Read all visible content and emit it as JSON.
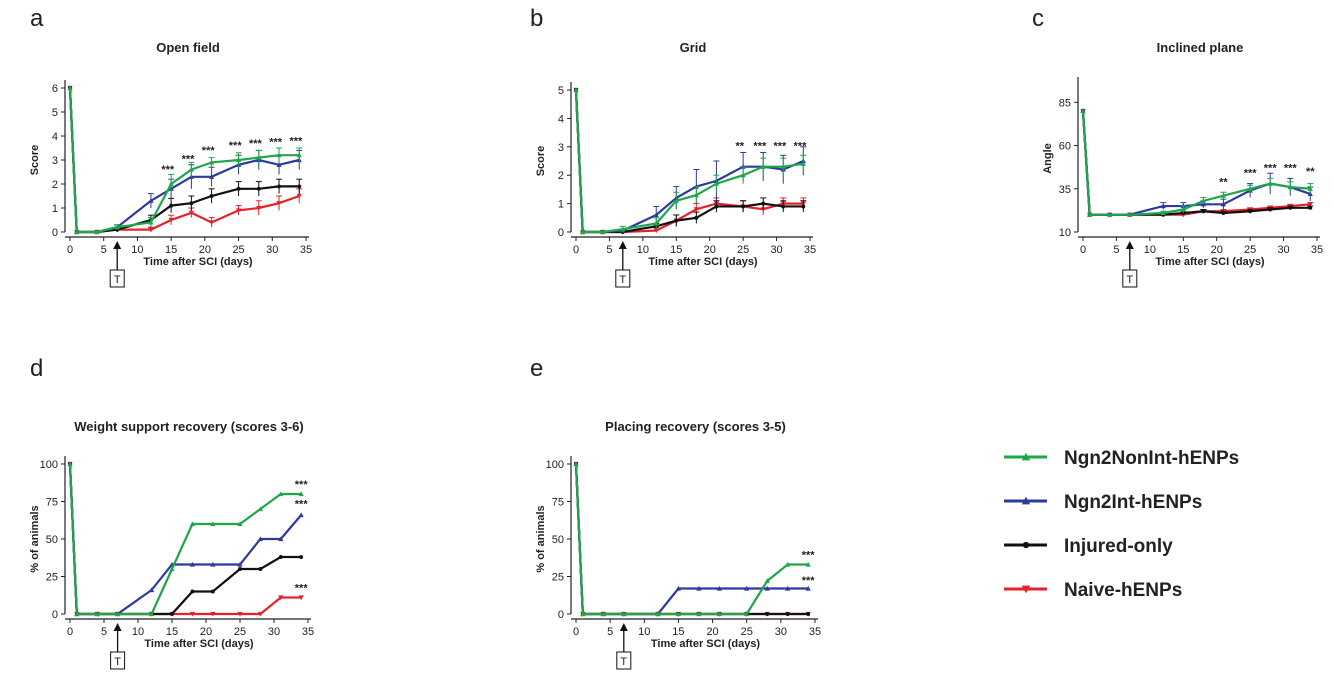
{
  "series_styles": [
    {
      "name": "Ngn2NonInt-hENPs",
      "color": "#1fa64a",
      "marker": "triangle-up"
    },
    {
      "name": "Ngn2Int-hENPs",
      "color": "#2b3a9c",
      "marker": "triangle-up"
    },
    {
      "name": "Injured-only",
      "color": "#111111",
      "marker": "circle"
    },
    {
      "name": "Naive-hENPs",
      "color": "#e8202a",
      "marker": "triangle-down"
    }
  ],
  "treatment_marker": {
    "label": "T",
    "day": 7
  },
  "chart_data": [
    {
      "id": "a",
      "panel_label": "a",
      "type": "line",
      "title": "Open field",
      "xlabel": "Time after SCI (days)",
      "ylabel": "Score",
      "xlim": [
        0,
        35
      ],
      "xticks": [
        0,
        5,
        10,
        15,
        20,
        25,
        30,
        35
      ],
      "ylim": [
        0,
        6
      ],
      "yticks": [
        0,
        1,
        2,
        3,
        4,
        5,
        6
      ],
      "annotations": [
        {
          "text": "***",
          "x": 14.5,
          "y": 2.45
        },
        {
          "text": "***",
          "x": 17.5,
          "y": 2.9
        },
        {
          "text": "***",
          "x": 20.5,
          "y": 3.25
        },
        {
          "text": "***",
          "x": 24.5,
          "y": 3.45
        },
        {
          "text": "***",
          "x": 27.5,
          "y": 3.55
        },
        {
          "text": "***",
          "x": 30.5,
          "y": 3.6
        },
        {
          "text": "***",
          "x": 33.5,
          "y": 3.65
        }
      ],
      "series": [
        {
          "name": "Ngn2NonInt-hENPs",
          "x": [
            0,
            1,
            4,
            7,
            12,
            15,
            18,
            21,
            25,
            28,
            31,
            34
          ],
          "y": [
            6,
            0,
            0,
            0.2,
            0.4,
            2.0,
            2.6,
            2.9,
            3.0,
            3.1,
            3.2,
            3.2
          ],
          "err": [
            0,
            0,
            0,
            0.1,
            0.2,
            0.4,
            0.3,
            0.2,
            0.3,
            0.3,
            0.3,
            0.3
          ]
        },
        {
          "name": "Ngn2Int-hENPs",
          "x": [
            0,
            1,
            4,
            7,
            12,
            15,
            18,
            21,
            25,
            28,
            31,
            34
          ],
          "y": [
            6,
            0,
            0,
            0.2,
            1.3,
            1.8,
            2.3,
            2.3,
            2.8,
            3.0,
            2.8,
            3.0
          ],
          "err": [
            0,
            0,
            0,
            0.1,
            0.3,
            0.4,
            0.5,
            0.4,
            0.4,
            0.4,
            0.4,
            0.4
          ]
        },
        {
          "name": "Injured-only",
          "x": [
            0,
            1,
            4,
            7,
            12,
            15,
            18,
            21,
            25,
            28,
            31,
            34
          ],
          "y": [
            6,
            0,
            0,
            0.1,
            0.5,
            1.1,
            1.2,
            1.5,
            1.8,
            1.8,
            1.9,
            1.9
          ],
          "err": [
            0,
            0,
            0,
            0.1,
            0.2,
            0.3,
            0.3,
            0.3,
            0.3,
            0.3,
            0.3,
            0.3
          ]
        },
        {
          "name": "Naive-hENPs",
          "x": [
            0,
            1,
            4,
            7,
            12,
            15,
            18,
            21,
            25,
            28,
            31,
            34
          ],
          "y": [
            6,
            0,
            0,
            0.1,
            0.1,
            0.5,
            0.8,
            0.4,
            0.9,
            1.0,
            1.2,
            1.5
          ],
          "err": [
            0,
            0,
            0,
            0.05,
            0.1,
            0.2,
            0.2,
            0.2,
            0.2,
            0.3,
            0.3,
            0.3
          ]
        }
      ]
    },
    {
      "id": "b",
      "panel_label": "b",
      "type": "line",
      "title": "Grid",
      "xlabel": "Time after SCI (days)",
      "ylabel": "Score",
      "xlim": [
        0,
        35
      ],
      "xticks": [
        0,
        5,
        10,
        15,
        20,
        25,
        30,
        35
      ],
      "ylim": [
        0,
        5
      ],
      "yticks": [
        0,
        1,
        2,
        3,
        4,
        5
      ],
      "annotations": [
        {
          "text": "**",
          "x": 24.5,
          "y": 2.9
        },
        {
          "text": "***",
          "x": 27.5,
          "y": 2.9
        },
        {
          "text": "***",
          "x": 30.5,
          "y": 2.9
        },
        {
          "text": "***",
          "x": 33.5,
          "y": 2.9
        }
      ],
      "series": [
        {
          "name": "Ngn2NonInt-hENPs",
          "x": [
            0,
            1,
            4,
            7,
            12,
            15,
            18,
            21,
            25,
            28,
            31,
            34
          ],
          "y": [
            5,
            0,
            0,
            0.1,
            0.3,
            1.1,
            1.3,
            1.7,
            2.0,
            2.3,
            2.3,
            2.4
          ],
          "err": [
            0,
            0,
            0,
            0.1,
            0.2,
            0.3,
            0.3,
            0.3,
            0.3,
            0.3,
            0.3,
            0.3
          ]
        },
        {
          "name": "Ngn2Int-hENPs",
          "x": [
            0,
            1,
            4,
            7,
            12,
            15,
            18,
            21,
            25,
            28,
            31,
            34
          ],
          "y": [
            5,
            0,
            0,
            0.05,
            0.6,
            1.2,
            1.6,
            1.8,
            2.3,
            2.3,
            2.2,
            2.5
          ],
          "err": [
            0,
            0,
            0,
            0.05,
            0.3,
            0.4,
            0.6,
            0.7,
            0.5,
            0.5,
            0.5,
            0.5
          ]
        },
        {
          "name": "Injured-only",
          "x": [
            0,
            1,
            4,
            7,
            12,
            15,
            18,
            21,
            25,
            28,
            31,
            34
          ],
          "y": [
            5,
            0,
            0,
            0,
            0.2,
            0.4,
            0.5,
            0.9,
            0.9,
            1.0,
            0.9,
            0.9
          ],
          "err": [
            0,
            0,
            0,
            0.05,
            0.1,
            0.2,
            0.2,
            0.2,
            0.2,
            0.2,
            0.2,
            0.2
          ]
        },
        {
          "name": "Naive-hENPs",
          "x": [
            0,
            1,
            4,
            7,
            12,
            15,
            18,
            21,
            25,
            28,
            31,
            34
          ],
          "y": [
            5,
            0,
            0,
            0,
            0.05,
            0.4,
            0.8,
            1.0,
            0.9,
            0.8,
            1.0,
            1.0
          ],
          "err": [
            0,
            0,
            0,
            0.05,
            0.1,
            0.2,
            0.2,
            0.2,
            0.2,
            0.2,
            0.2,
            0.2
          ]
        }
      ]
    },
    {
      "id": "c",
      "panel_label": "c",
      "type": "line",
      "title": "Inclined plane",
      "xlabel": "Time after SCI (days)",
      "ylabel": "Angle",
      "xlim": [
        0,
        35
      ],
      "xticks": [
        0,
        5,
        10,
        15,
        20,
        25,
        30,
        35
      ],
      "ylim": [
        10,
        95
      ],
      "yticks": [
        10,
        35,
        60,
        85
      ],
      "annotations": [
        {
          "text": "**",
          "x": 21,
          "y": 37
        },
        {
          "text": "***",
          "x": 25,
          "y": 42
        },
        {
          "text": "***",
          "x": 28,
          "y": 45
        },
        {
          "text": "***",
          "x": 31,
          "y": 45
        },
        {
          "text": "**",
          "x": 34,
          "y": 43
        }
      ],
      "series": [
        {
          "name": "Ngn2NonInt-hENPs",
          "x": [
            0,
            1,
            4,
            7,
            12,
            15,
            18,
            21,
            25,
            28,
            31,
            34
          ],
          "y": [
            80,
            20,
            20,
            20,
            21,
            23,
            28,
            31,
            35,
            38,
            36,
            35
          ],
          "err": [
            0,
            0,
            0,
            0,
            1,
            2,
            2,
            2,
            2,
            3,
            3,
            3
          ]
        },
        {
          "name": "Ngn2Int-hENPs",
          "x": [
            0,
            1,
            4,
            7,
            12,
            15,
            18,
            21,
            25,
            28,
            31,
            34
          ],
          "y": [
            80,
            20,
            20,
            20,
            25,
            25,
            26,
            26,
            34,
            38,
            36,
            32
          ],
          "err": [
            0,
            0,
            0,
            0,
            2,
            2,
            2,
            3,
            4,
            6,
            5,
            4
          ]
        },
        {
          "name": "Injured-only",
          "x": [
            0,
            1,
            4,
            7,
            12,
            15,
            18,
            21,
            25,
            28,
            31,
            34
          ],
          "y": [
            80,
            20,
            20,
            20,
            20,
            21,
            22,
            21,
            22,
            23,
            24,
            24
          ],
          "err": [
            0,
            0,
            0,
            0,
            1,
            1,
            1,
            1,
            1,
            1,
            1,
            1
          ]
        },
        {
          "name": "Naive-hENPs",
          "x": [
            0,
            1,
            4,
            7,
            12,
            15,
            18,
            21,
            25,
            28,
            31,
            34
          ],
          "y": [
            80,
            20,
            20,
            20,
            20,
            20,
            22,
            22,
            23,
            24,
            25,
            26
          ],
          "err": [
            0,
            0,
            0,
            0,
            1,
            1,
            1,
            1,
            1,
            1,
            1,
            1
          ]
        }
      ]
    },
    {
      "id": "d",
      "panel_label": "d",
      "type": "line",
      "title": "Weight support  recovery (scores 3-6)",
      "xlabel": "Time after SCI (days)",
      "ylabel": "% of animals",
      "xlim": [
        0,
        35
      ],
      "xticks": [
        0,
        5,
        10,
        15,
        20,
        25,
        30,
        35
      ],
      "ylim": [
        0,
        100
      ],
      "yticks": [
        0,
        25,
        50,
        75,
        100
      ],
      "annotations": [
        {
          "text": "***",
          "x": 34,
          "y": 84
        },
        {
          "text": "***",
          "x": 34,
          "y": 71
        },
        {
          "text": "***",
          "x": 34,
          "y": 15
        }
      ],
      "series": [
        {
          "name": "Ngn2NonInt-hENPs",
          "x": [
            0,
            1,
            4,
            7,
            12,
            15,
            18,
            21,
            25,
            28,
            31,
            34
          ],
          "y": [
            100,
            0,
            0,
            0,
            0,
            30,
            60,
            60,
            60,
            70,
            80,
            80
          ]
        },
        {
          "name": "Ngn2Int-hENPs",
          "x": [
            0,
            1,
            4,
            7,
            12,
            15,
            18,
            21,
            25,
            28,
            31,
            34
          ],
          "y": [
            100,
            0,
            0,
            0,
            16,
            33,
            33,
            33,
            33,
            50,
            50,
            66
          ]
        },
        {
          "name": "Injured-only",
          "x": [
            0,
            1,
            4,
            7,
            12,
            15,
            18,
            21,
            25,
            28,
            31,
            34
          ],
          "y": [
            100,
            0,
            0,
            0,
            0,
            0,
            15,
            15,
            30,
            30,
            38,
            38
          ]
        },
        {
          "name": "Naive-hENPs",
          "x": [
            0,
            1,
            4,
            7,
            12,
            15,
            18,
            21,
            25,
            28,
            31,
            34
          ],
          "y": [
            100,
            0,
            0,
            0,
            0,
            0,
            0,
            0,
            0,
            0,
            11,
            11
          ]
        }
      ]
    },
    {
      "id": "e",
      "panel_label": "e",
      "type": "line",
      "title": "Placing recovery (scores  3-5)",
      "xlabel": "Time after SCI (days)",
      "ylabel": "% of animals",
      "xlim": [
        0,
        35
      ],
      "xticks": [
        0,
        5,
        10,
        15,
        20,
        25,
        30,
        35
      ],
      "ylim": [
        0,
        100
      ],
      "yticks": [
        0,
        25,
        50,
        75,
        100
      ],
      "annotations": [
        {
          "text": "***",
          "x": 34,
          "y": 37
        },
        {
          "text": "***",
          "x": 34,
          "y": 20
        }
      ],
      "series": [
        {
          "name": "Ngn2NonInt-hENPs",
          "x": [
            0,
            1,
            4,
            7,
            12,
            15,
            18,
            21,
            25,
            28,
            31,
            34
          ],
          "y": [
            100,
            0,
            0,
            0,
            0,
            0,
            0,
            0,
            0,
            22,
            33,
            33
          ]
        },
        {
          "name": "Ngn2Int-hENPs",
          "x": [
            0,
            1,
            4,
            7,
            12,
            15,
            18,
            21,
            25,
            28,
            31,
            34
          ],
          "y": [
            100,
            0,
            0,
            0,
            0,
            17,
            17,
            17,
            17,
            17,
            17,
            17
          ]
        },
        {
          "name": "Injured-only",
          "x": [
            0,
            1,
            4,
            7,
            12,
            15,
            18,
            21,
            25,
            28,
            31,
            34
          ],
          "y": [
            100,
            0,
            0,
            0,
            0,
            0,
            0,
            0,
            0,
            0,
            0,
            0
          ]
        },
        {
          "name": "Naive-hENPs",
          "x": [
            0,
            1,
            4,
            7,
            12,
            15,
            18,
            21,
            25,
            28,
            31,
            34
          ],
          "y": [
            100,
            0,
            0,
            0,
            0,
            0,
            0,
            0,
            0,
            0,
            0,
            0
          ]
        }
      ]
    }
  ],
  "legend": {
    "placement": "bottom-right",
    "items": [
      "Ngn2NonInt-hENPs",
      "Ngn2Int-hENPs",
      "Injured-only",
      "Naive-hENPs"
    ]
  }
}
